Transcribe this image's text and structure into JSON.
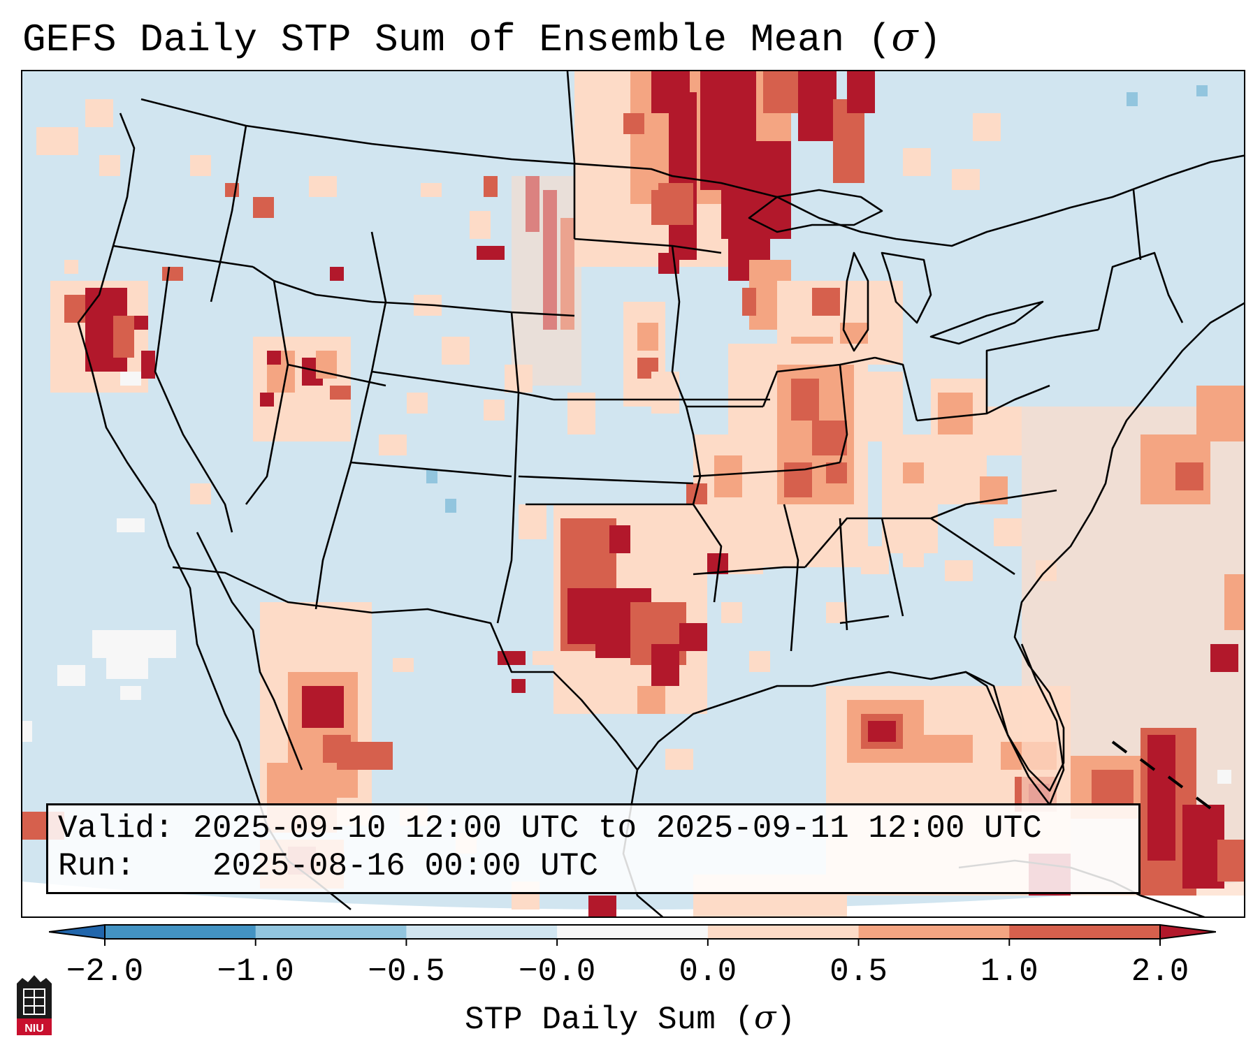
{
  "title": {
    "text": "GEFS Daily STP Sum of Ensemble Mean (",
    "symbol": "σ",
    "close": ")"
  },
  "info": {
    "valid_label": "Valid:",
    "valid_value": "2025-09-10 12:00 UTC to 2025-09-11 12:00 UTC",
    "run_label": "Run:",
    "run_value": "2025-08-16 00:00 UTC"
  },
  "colorbar": {
    "ticks": [
      "−2.0",
      "−1.0",
      "−0.5",
      "−0.0",
      "0.0",
      "0.5",
      "1.0",
      "2.0"
    ],
    "label_text": "STP Daily Sum (",
    "label_symbol": "σ",
    "label_close": ")",
    "bins": [
      {
        "range": "< -2.0",
        "color": "#2166ac"
      },
      {
        "range": "-2.0 to -1.0",
        "color": "#4393c3"
      },
      {
        "range": "-1.0 to -0.5",
        "color": "#92c5de"
      },
      {
        "range": "-0.5 to -0.0",
        "color": "#d1e5f0"
      },
      {
        "range": "-0.0 to 0.0",
        "color": "#f7f7f7"
      },
      {
        "range": "0.0 to 0.5",
        "color": "#fddbc7"
      },
      {
        "range": "0.5 to 1.0",
        "color": "#f4a582"
      },
      {
        "range": "1.0 to 2.0",
        "color": "#d6604d"
      },
      {
        "range": "> 2.0",
        "color": "#b2182b"
      }
    ]
  },
  "logo": {
    "text": "NIU",
    "color": "#c8102e"
  }
}
